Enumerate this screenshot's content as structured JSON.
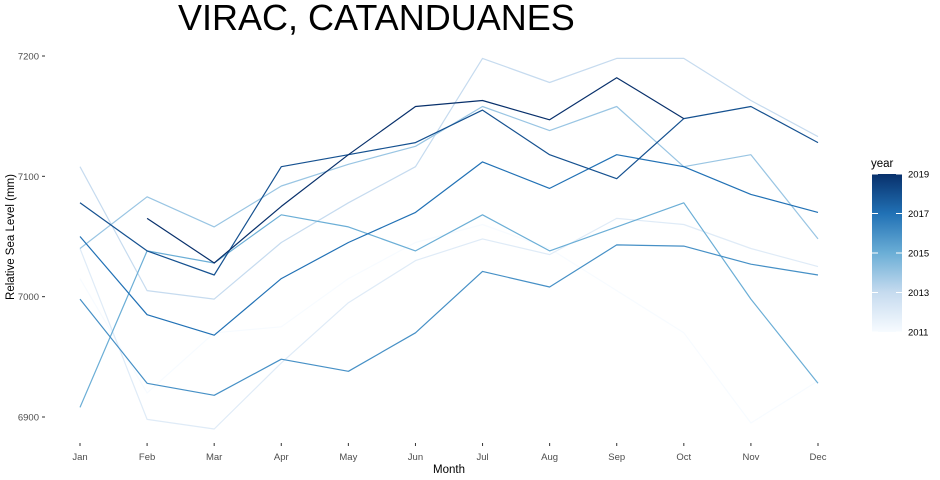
{
  "chart_data": {
    "type": "line",
    "title": "VIRAC, CATANDUANES",
    "xlabel": "Month",
    "ylabel": "Relative Sea Level (mm)",
    "categories": [
      "Jan",
      "Feb",
      "Mar",
      "Apr",
      "May",
      "Jun",
      "Jul",
      "Aug",
      "Sep",
      "Oct",
      "Nov",
      "Dec"
    ],
    "ylim": [
      6880,
      7215
    ],
    "yticks": [
      "6900",
      "7000",
      "7100",
      "7200"
    ],
    "grid": false,
    "legend": {
      "title": "year",
      "position": "right",
      "type": "colorbar",
      "ticks": [
        "2011",
        "2013",
        "2015",
        "2017",
        "2019"
      ],
      "range": [
        2011,
        2019
      ],
      "colors": [
        "#f7fbff",
        "#c6dbef",
        "#6baed6",
        "#2171b5",
        "#08306b"
      ]
    },
    "series": [
      {
        "year": 2011,
        "values": [
          7015,
          6920,
          6970,
          6975,
          7015,
          7045,
          7060,
          7040,
          7005,
          6970,
          6895,
          6930
        ]
      },
      {
        "year": 2012,
        "values": [
          7040,
          6898,
          6890,
          6945,
          6995,
          7030,
          7048,
          7035,
          7065,
          7060,
          7040,
          7025
        ]
      },
      {
        "year": 2013,
        "values": [
          7108,
          7005,
          6998,
          7045,
          7078,
          7108,
          7198,
          7178,
          7198,
          7198,
          7163,
          7133
        ]
      },
      {
        "year": 2014,
        "values": [
          7040,
          7083,
          7058,
          7092,
          7110,
          7125,
          7158,
          7138,
          7158,
          7108,
          7118,
          7048
        ]
      },
      {
        "year": 2015,
        "values": [
          6908,
          7038,
          7028,
          7068,
          7058,
          7038,
          7068,
          7038,
          7058,
          7078,
          6998,
          6928
        ]
      },
      {
        "year": 2016,
        "values": [
          6998,
          6928,
          6918,
          6948,
          6938,
          6970,
          7021,
          7008,
          7043,
          7042,
          7027,
          7018
        ]
      },
      {
        "year": 2017,
        "values": [
          7050,
          6985,
          6968,
          7015,
          7045,
          7070,
          7112,
          7090,
          7118,
          7108,
          7085,
          7070
        ]
      },
      {
        "year": 2018,
        "values": [
          7078,
          7038,
          7018,
          7108,
          7118,
          7128,
          7155,
          7118,
          7098,
          7148,
          7158,
          7128
        ]
      },
      {
        "year": 2019,
        "values": [
          null,
          7065,
          7028,
          7075,
          7118,
          7158,
          7163,
          7147,
          7182,
          7148,
          null,
          null
        ]
      }
    ]
  }
}
